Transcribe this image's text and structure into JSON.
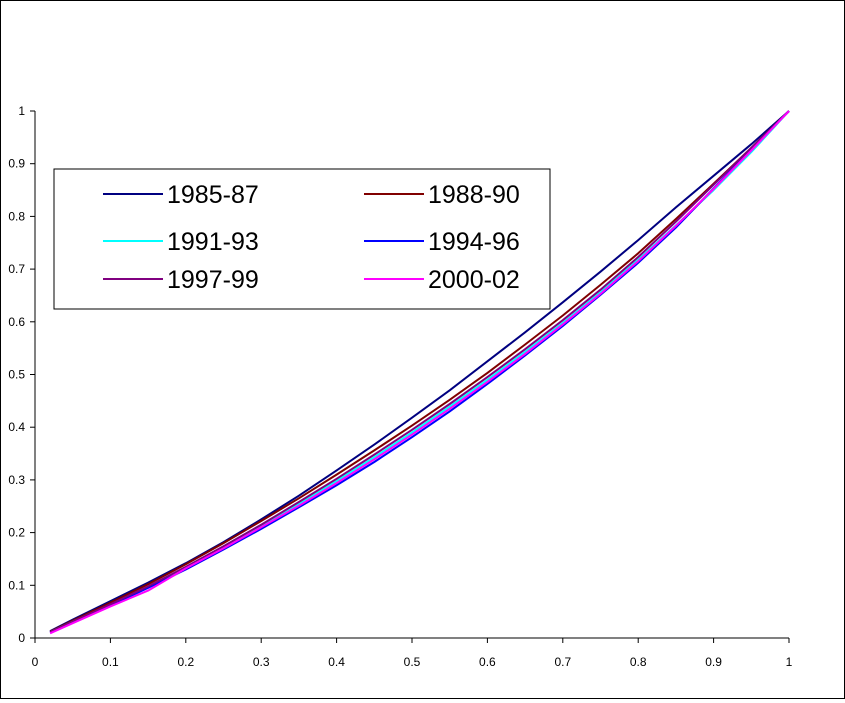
{
  "chart_data": {
    "type": "line",
    "title": "",
    "xlabel": "",
    "ylabel": "",
    "xlim": [
      0,
      1
    ],
    "ylim": [
      0,
      1
    ],
    "xticks": [
      "0",
      "0.1",
      "0.2",
      "0.3",
      "0.4",
      "0.5",
      "0.6",
      "0.7",
      "0.8",
      "0.9",
      "1"
    ],
    "yticks": [
      "0",
      "0.1",
      "0.2",
      "0.3",
      "0.4",
      "0.5",
      "0.6",
      "0.7",
      "0.8",
      "0.9",
      "1"
    ],
    "grid": false,
    "legend_position": "upper-left",
    "x": [
      0.02,
      0.05,
      0.1,
      0.15,
      0.2,
      0.25,
      0.3,
      0.35,
      0.4,
      0.45,
      0.5,
      0.55,
      0.6,
      0.65,
      0.7,
      0.75,
      0.8,
      0.85,
      0.9,
      0.95,
      1.0
    ],
    "series": [
      {
        "name": "1985-87",
        "color": "#000080",
        "values": [
          0.013,
          0.035,
          0.07,
          0.105,
          0.142,
          0.182,
          0.225,
          0.27,
          0.318,
          0.367,
          0.418,
          0.47,
          0.525,
          0.58,
          0.637,
          0.695,
          0.755,
          0.817,
          0.877,
          0.937,
          1.0
        ]
      },
      {
        "name": "1988-90",
        "color": "#800000",
        "values": [
          0.012,
          0.033,
          0.067,
          0.102,
          0.14,
          0.18,
          0.222,
          0.265,
          0.31,
          0.356,
          0.403,
          0.452,
          0.503,
          0.557,
          0.612,
          0.67,
          0.73,
          0.795,
          0.862,
          0.93,
          1.0
        ]
      },
      {
        "name": "1991-93",
        "color": "#00ffff",
        "values": [
          0.011,
          0.031,
          0.063,
          0.097,
          0.133,
          0.172,
          0.212,
          0.254,
          0.298,
          0.343,
          0.39,
          0.439,
          0.49,
          0.543,
          0.598,
          0.656,
          0.718,
          0.783,
          0.85,
          0.922,
          1.0
        ]
      },
      {
        "name": "1994-96",
        "color": "#0000ff",
        "values": [
          0.01,
          0.03,
          0.062,
          0.095,
          0.13,
          0.168,
          0.207,
          0.248,
          0.29,
          0.334,
          0.381,
          0.43,
          0.482,
          0.536,
          0.592,
          0.651,
          0.712,
          0.779,
          0.853,
          0.928,
          1.0
        ]
      },
      {
        "name": "1997-99",
        "color": "#800080",
        "values": [
          0.011,
          0.031,
          0.064,
          0.098,
          0.135,
          0.174,
          0.215,
          0.258,
          0.302,
          0.348,
          0.395,
          0.444,
          0.495,
          0.548,
          0.603,
          0.661,
          0.723,
          0.79,
          0.86,
          0.93,
          1.0
        ]
      },
      {
        "name": "2000-02",
        "color": "#ff00ff",
        "values": [
          0.009,
          0.028,
          0.06,
          0.09,
          0.132,
          0.17,
          0.21,
          0.251,
          0.294,
          0.339,
          0.386,
          0.435,
          0.486,
          0.539,
          0.595,
          0.653,
          0.715,
          0.782,
          0.852,
          0.925,
          1.0
        ]
      }
    ]
  }
}
